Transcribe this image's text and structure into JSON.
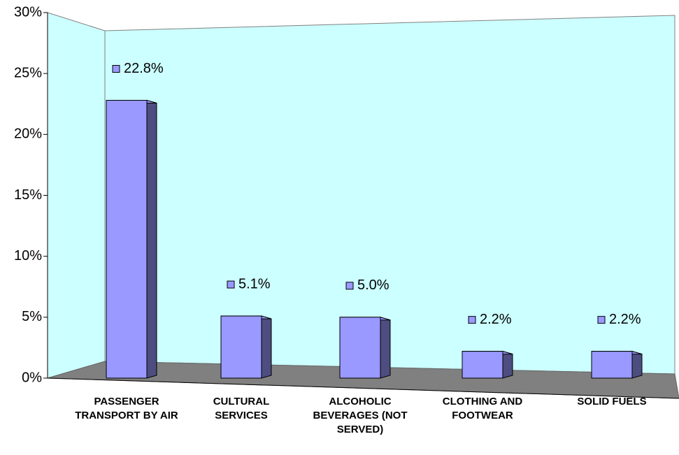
{
  "chart_data": {
    "type": "bar3d",
    "categories": [
      "PASSENGER TRANSPORT BY AIR",
      "CULTURAL SERVICES",
      "ALCOHOLIC BEVERAGES (NOT SERVED)",
      "CLOTHING AND FOOTWEAR",
      "SOLID FUELS"
    ],
    "values": [
      22.8,
      5.1,
      5.0,
      2.2,
      2.2
    ],
    "value_labels": [
      "22.8%",
      "5.1%",
      "5.0%",
      "2.2%",
      "2.2%"
    ],
    "color": "#9999ff",
    "ylim": [
      0,
      30
    ],
    "yticks": [
      {
        "value": 0,
        "label": "0%"
      },
      {
        "value": 5,
        "label": "5%"
      },
      {
        "value": 10,
        "label": "10%"
      },
      {
        "value": 15,
        "label": "15%"
      },
      {
        "value": 20,
        "label": "20%"
      },
      {
        "value": 25,
        "label": "25%"
      },
      {
        "value": 30,
        "label": "30%"
      }
    ]
  }
}
